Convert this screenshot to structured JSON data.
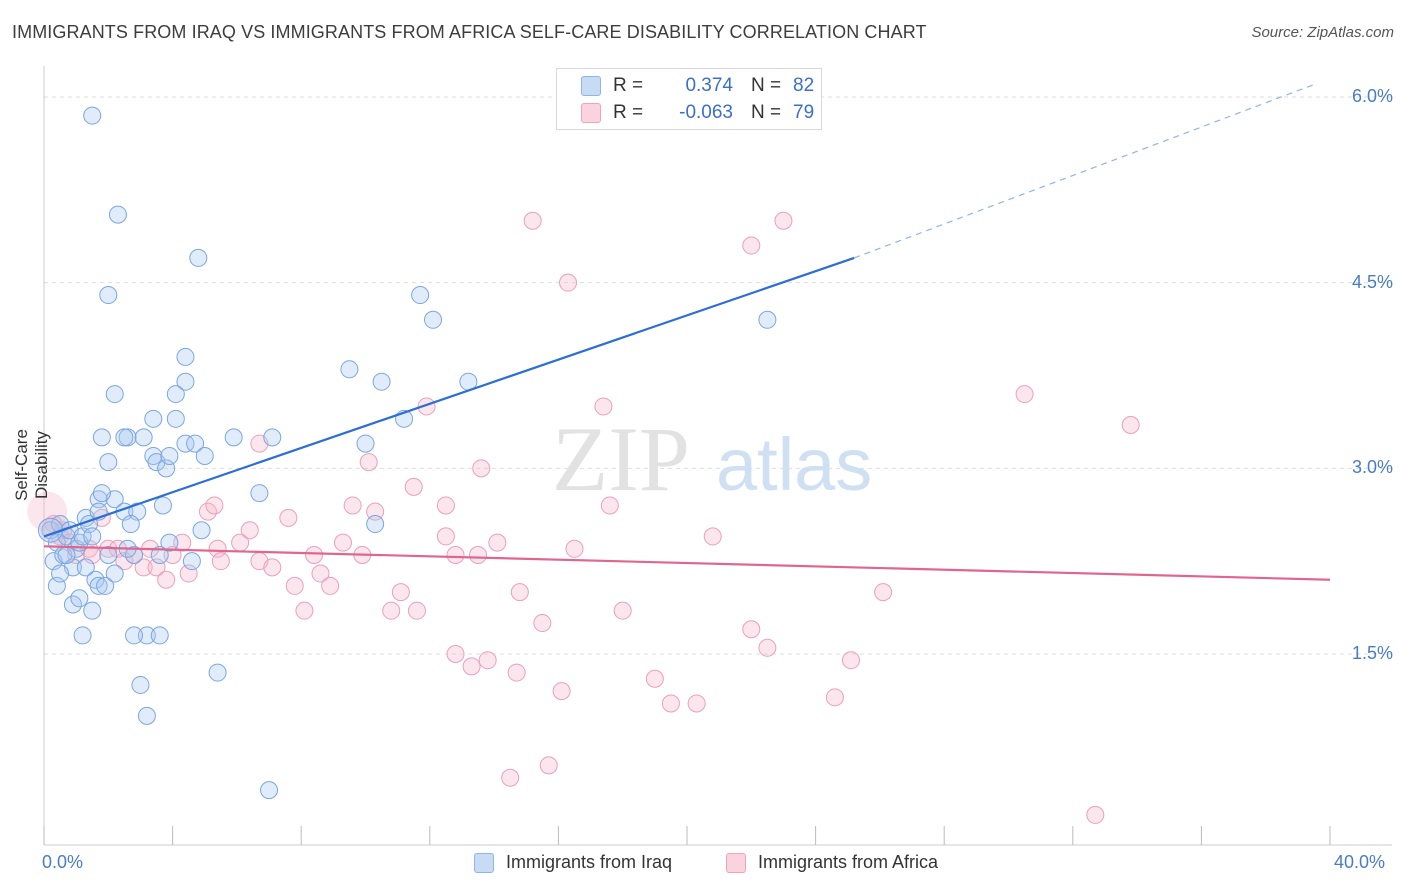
{
  "header": {
    "title": "IMMIGRANTS FROM IRAQ VS IMMIGRANTS FROM AFRICA SELF-CARE DISABILITY CORRELATION CHART",
    "source": "Source: ZipAtlas.com"
  },
  "watermark": {
    "zip": "ZIP",
    "atlas": "atlas"
  },
  "legend_box": {
    "rows": [
      {
        "r_label": "R =",
        "r_value": "0.374",
        "n_label": "N =",
        "n_value": "82",
        "color": "#a8c8f0"
      },
      {
        "r_label": "R =",
        "r_value": "-0.063",
        "n_label": "N =",
        "n_value": "79",
        "color": "#f5b8cb"
      }
    ]
  },
  "legend_bottom": [
    {
      "label": "Immigrants from Iraq",
      "color": "#a8c8f0"
    },
    {
      "label": "Immigrants from Africa",
      "color": "#f5b8cb"
    }
  ],
  "chart_data": {
    "type": "scatter",
    "title": "IMMIGRANTS FROM IRAQ VS IMMIGRANTS FROM AFRICA SELF-CARE DISABILITY CORRELATION CHART",
    "xlabel": "",
    "ylabel": "Self-Care Disability",
    "xlim": [
      0,
      40
    ],
    "ylim": [
      0,
      6.25
    ],
    "x_tick_labels": [
      "0.0%",
      "40.0%"
    ],
    "y_ticks": [
      1.5,
      3.0,
      4.5,
      6.0
    ],
    "y_tick_labels": [
      "1.5%",
      "3.0%",
      "4.5%",
      "6.0%"
    ],
    "grid": true,
    "legend_position": "top-center",
    "colors": {
      "iraq": "#a8c8f0",
      "iraq_line": "#2b6fd6",
      "africa": "#f5b8cb",
      "africa_line": "#e0668f"
    },
    "series": [
      {
        "name": "Immigrants from Iraq",
        "R": 0.374,
        "N": 82,
        "trend": {
          "x": [
            0.0,
            25.2
          ],
          "y": [
            2.45,
            4.7
          ],
          "dashed_to": [
            39.5,
            6.1
          ]
        },
        "points": [
          [
            0.2,
            2.5
          ],
          [
            0.3,
            2.25
          ],
          [
            0.4,
            2.4
          ],
          [
            0.5,
            2.55
          ],
          [
            0.6,
            2.3
          ],
          [
            0.7,
            2.45
          ],
          [
            0.8,
            2.5
          ],
          [
            0.9,
            2.2
          ],
          [
            1.0,
            2.35
          ],
          [
            1.1,
            2.4
          ],
          [
            1.2,
            2.45
          ],
          [
            1.3,
            2.6
          ],
          [
            1.4,
            2.55
          ],
          [
            1.5,
            2.45
          ],
          [
            0.4,
            2.05
          ],
          [
            0.5,
            2.15
          ],
          [
            0.9,
            1.9
          ],
          [
            1.1,
            1.95
          ],
          [
            1.5,
            1.85
          ],
          [
            1.6,
            2.1
          ],
          [
            1.7,
            2.05
          ],
          [
            1.9,
            2.05
          ],
          [
            2.2,
            2.15
          ],
          [
            2.0,
            2.3
          ],
          [
            1.3,
            2.2
          ],
          [
            0.7,
            2.3
          ],
          [
            1.7,
            2.75
          ],
          [
            2.2,
            2.75
          ],
          [
            1.8,
            2.8
          ],
          [
            2.5,
            2.65
          ],
          [
            2.9,
            2.65
          ],
          [
            2.7,
            2.55
          ],
          [
            2.8,
            2.3
          ],
          [
            2.6,
            2.35
          ],
          [
            3.7,
            2.7
          ],
          [
            3.6,
            2.3
          ],
          [
            3.9,
            2.4
          ],
          [
            4.6,
            2.25
          ],
          [
            4.9,
            2.5
          ],
          [
            2.0,
            3.05
          ],
          [
            1.8,
            3.25
          ],
          [
            2.6,
            3.25
          ],
          [
            3.1,
            3.25
          ],
          [
            2.5,
            3.25
          ],
          [
            3.4,
            3.1
          ],
          [
            3.5,
            3.05
          ],
          [
            3.8,
            3.0
          ],
          [
            3.9,
            3.1
          ],
          [
            4.4,
            3.2
          ],
          [
            4.7,
            3.2
          ],
          [
            5.0,
            3.1
          ],
          [
            5.9,
            3.25
          ],
          [
            3.4,
            3.4
          ],
          [
            4.1,
            3.4
          ],
          [
            2.2,
            3.6
          ],
          [
            4.1,
            3.6
          ],
          [
            4.4,
            3.7
          ],
          [
            4.4,
            3.9
          ],
          [
            6.7,
            2.8
          ],
          [
            7.1,
            3.25
          ],
          [
            10.3,
            2.55
          ],
          [
            10.0,
            3.2
          ],
          [
            11.2,
            3.4
          ],
          [
            13.2,
            3.7
          ],
          [
            9.5,
            3.8
          ],
          [
            10.5,
            3.7
          ],
          [
            12.1,
            4.2
          ],
          [
            11.7,
            4.4
          ],
          [
            22.5,
            4.2
          ],
          [
            4.8,
            4.7
          ],
          [
            2.0,
            4.4
          ],
          [
            2.3,
            5.05
          ],
          [
            1.5,
            5.85
          ],
          [
            3.2,
            1.65
          ],
          [
            3.6,
            1.65
          ],
          [
            2.8,
            1.65
          ],
          [
            1.2,
            1.65
          ],
          [
            3.2,
            1.0
          ],
          [
            3.0,
            1.25
          ],
          [
            5.4,
            1.35
          ],
          [
            7.0,
            0.4
          ],
          [
            1.7,
            2.65
          ]
        ]
      },
      {
        "name": "Immigrants from Africa",
        "R": -0.063,
        "N": 79,
        "trend": {
          "x": [
            0.0,
            40.0
          ],
          "y": [
            2.37,
            2.1
          ]
        },
        "points": [
          [
            0.3,
            2.55
          ],
          [
            0.5,
            2.45
          ],
          [
            0.6,
            2.5
          ],
          [
            0.8,
            2.4
          ],
          [
            1.0,
            2.3
          ],
          [
            1.4,
            2.35
          ],
          [
            1.5,
            2.3
          ],
          [
            1.8,
            2.6
          ],
          [
            2.0,
            2.35
          ],
          [
            2.3,
            2.35
          ],
          [
            2.5,
            2.25
          ],
          [
            2.8,
            2.3
          ],
          [
            3.1,
            2.2
          ],
          [
            3.3,
            2.35
          ],
          [
            3.5,
            2.2
          ],
          [
            3.8,
            2.1
          ],
          [
            4.0,
            2.3
          ],
          [
            4.3,
            2.4
          ],
          [
            4.5,
            2.15
          ],
          [
            5.1,
            2.65
          ],
          [
            5.3,
            2.7
          ],
          [
            5.4,
            2.35
          ],
          [
            5.5,
            2.25
          ],
          [
            6.1,
            2.4
          ],
          [
            6.4,
            2.5
          ],
          [
            6.7,
            2.25
          ],
          [
            7.1,
            2.2
          ],
          [
            7.6,
            2.6
          ],
          [
            7.8,
            2.05
          ],
          [
            8.1,
            1.85
          ],
          [
            8.4,
            2.3
          ],
          [
            8.6,
            2.15
          ],
          [
            8.9,
            2.05
          ],
          [
            9.3,
            2.4
          ],
          [
            9.6,
            2.7
          ],
          [
            9.9,
            2.3
          ],
          [
            10.3,
            2.65
          ],
          [
            10.8,
            1.85
          ],
          [
            11.1,
            2.0
          ],
          [
            11.5,
            2.85
          ],
          [
            11.6,
            1.85
          ],
          [
            12.5,
            2.45
          ],
          [
            12.5,
            2.7
          ],
          [
            12.8,
            2.3
          ],
          [
            13.5,
            2.3
          ],
          [
            14.1,
            2.4
          ],
          [
            14.8,
            2.0
          ],
          [
            15.5,
            1.75
          ],
          [
            16.5,
            2.35
          ],
          [
            17.6,
            2.7
          ],
          [
            18.0,
            1.85
          ],
          [
            19.0,
            1.3
          ],
          [
            19.5,
            1.1
          ],
          [
            20.3,
            1.1
          ],
          [
            20.8,
            2.45
          ],
          [
            22.0,
            1.7
          ],
          [
            22.5,
            1.55
          ],
          [
            24.6,
            1.15
          ],
          [
            25.1,
            1.45
          ],
          [
            26.1,
            2.0
          ],
          [
            22.0,
            4.8
          ],
          [
            23.0,
            5.0
          ],
          [
            15.2,
            5.0
          ],
          [
            16.3,
            4.5
          ],
          [
            17.4,
            3.5
          ],
          [
            11.9,
            3.5
          ],
          [
            13.6,
            3.0
          ],
          [
            10.1,
            3.05
          ],
          [
            6.7,
            3.2
          ],
          [
            30.5,
            3.6
          ],
          [
            33.8,
            3.35
          ],
          [
            12.8,
            1.5
          ],
          [
            13.8,
            1.45
          ],
          [
            14.7,
            1.35
          ],
          [
            13.3,
            1.4
          ],
          [
            16.1,
            1.2
          ],
          [
            14.5,
            0.5
          ],
          [
            15.7,
            0.6
          ],
          [
            32.7,
            0.2
          ]
        ]
      }
    ]
  }
}
